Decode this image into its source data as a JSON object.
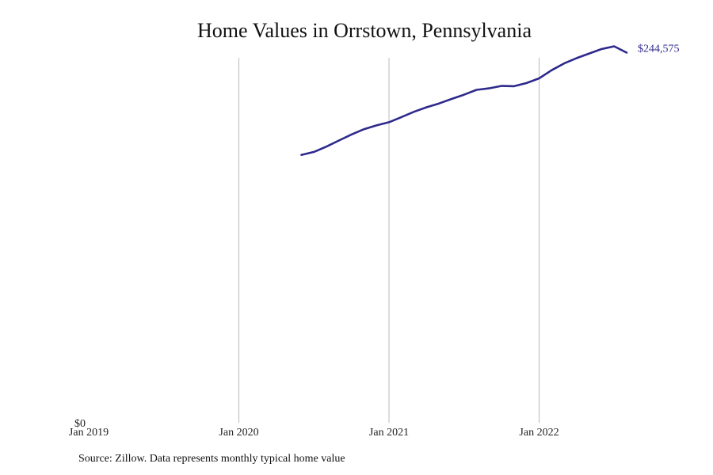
{
  "colors": {
    "line": "#2e2a8c",
    "gridline": "#b8b8b8",
    "text": "#222222"
  },
  "footer": {
    "source": "Source: Zillow. Data represents monthly typical home value"
  },
  "chart_data": {
    "type": "line",
    "title": "Home Values in Orrstown, Pennsylvania",
    "xlabel": "",
    "ylabel": "",
    "grid": "vertical",
    "x_ticks": [
      {
        "date": "2019-01",
        "label": "Jan 2019"
      },
      {
        "date": "2020-01",
        "label": "Jan 2020"
      },
      {
        "date": "2021-01",
        "label": "Jan 2021"
      },
      {
        "date": "2022-01",
        "label": "Jan 2022"
      }
    ],
    "y_ticks": [
      {
        "value": 0,
        "label": "$0"
      }
    ],
    "xlim": [
      "2019-01",
      "2023-01"
    ],
    "ylim": [
      0,
      248000
    ],
    "end_label": "$244,575",
    "series": [
      {
        "x": [
          "2020-06",
          "2020-07",
          "2020-08",
          "2020-09",
          "2020-10",
          "2020-11",
          "2020-12",
          "2021-01",
          "2021-02",
          "2021-03",
          "2021-04",
          "2021-05",
          "2021-06",
          "2021-07",
          "2021-08",
          "2021-09",
          "2021-10",
          "2021-11",
          "2021-12",
          "2022-01",
          "2022-02",
          "2022-03",
          "2022-04",
          "2022-05",
          "2022-06",
          "2022-07",
          "2022-08"
        ],
        "values": [
          177000,
          179000,
          182500,
          186500,
          190500,
          194000,
          196500,
          198600,
          202000,
          205500,
          208500,
          211000,
          214000,
          216800,
          220000,
          221000,
          222600,
          222400,
          224500,
          227600,
          233000,
          237500,
          241000,
          244000,
          247000,
          248800,
          244575
        ]
      }
    ]
  }
}
